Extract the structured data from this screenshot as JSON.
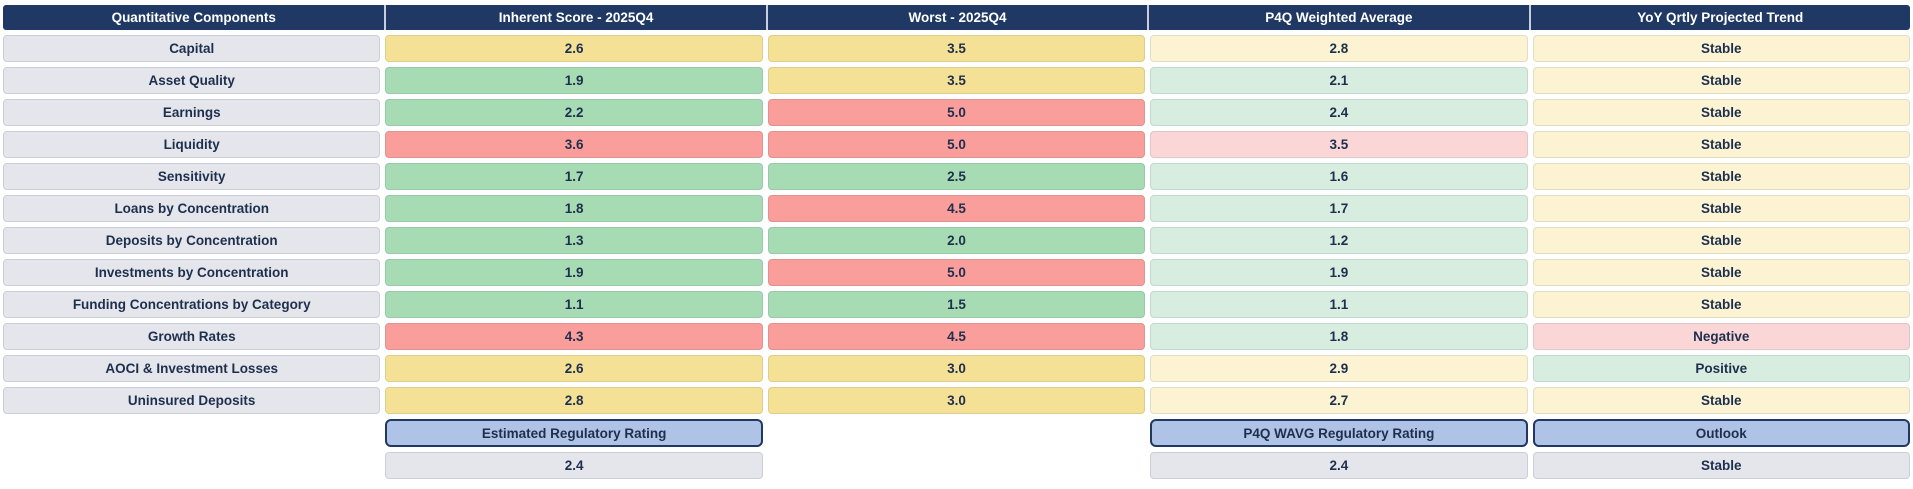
{
  "palette": {
    "header_bg": "#1F3864",
    "header_text": "#FFFFFF",
    "header_separator": "#C9CEDA",
    "label_bg": "#E4E6EC",
    "cell_text": "#1E2F4E",
    "green": "#A6DBB4",
    "yellow": "#F5E196",
    "red": "#F99E9A",
    "pale_green": "#D7EDDF",
    "pale_yellow": "#FBF3D2",
    "pale_red": "#FBD6D7",
    "button_bg": "#AFC3E6",
    "button_border": "#1F3864",
    "summary_bg": "#E4E6EC"
  },
  "table": {
    "columns": [
      {
        "label": "Quantitative Components"
      },
      {
        "label": "Inherent Score - 2025Q4"
      },
      {
        "label": "Worst - 2025Q4"
      },
      {
        "label": "P4Q Weighted Average"
      },
      {
        "label": "YoY Qrtly Projected Trend"
      }
    ],
    "rows": [
      {
        "label": "Capital",
        "inherent": {
          "value": "2.6",
          "color": "yellow"
        },
        "worst": {
          "value": "3.5",
          "color": "yellow"
        },
        "p4q": {
          "value": "2.8",
          "color": "pale_yellow"
        },
        "trend": {
          "value": "Stable",
          "color": "pale_yellow"
        }
      },
      {
        "label": "Asset Quality",
        "inherent": {
          "value": "1.9",
          "color": "green"
        },
        "worst": {
          "value": "3.5",
          "color": "yellow"
        },
        "p4q": {
          "value": "2.1",
          "color": "pale_green"
        },
        "trend": {
          "value": "Stable",
          "color": "pale_yellow"
        }
      },
      {
        "label": "Earnings",
        "inherent": {
          "value": "2.2",
          "color": "green"
        },
        "worst": {
          "value": "5.0",
          "color": "red"
        },
        "p4q": {
          "value": "2.4",
          "color": "pale_green"
        },
        "trend": {
          "value": "Stable",
          "color": "pale_yellow"
        }
      },
      {
        "label": "Liquidity",
        "inherent": {
          "value": "3.6",
          "color": "red"
        },
        "worst": {
          "value": "5.0",
          "color": "red"
        },
        "p4q": {
          "value": "3.5",
          "color": "pale_red"
        },
        "trend": {
          "value": "Stable",
          "color": "pale_yellow"
        }
      },
      {
        "label": "Sensitivity",
        "inherent": {
          "value": "1.7",
          "color": "green"
        },
        "worst": {
          "value": "2.5",
          "color": "green"
        },
        "p4q": {
          "value": "1.6",
          "color": "pale_green"
        },
        "trend": {
          "value": "Stable",
          "color": "pale_yellow"
        }
      },
      {
        "label": "Loans by Concentration",
        "inherent": {
          "value": "1.8",
          "color": "green"
        },
        "worst": {
          "value": "4.5",
          "color": "red"
        },
        "p4q": {
          "value": "1.7",
          "color": "pale_green"
        },
        "trend": {
          "value": "Stable",
          "color": "pale_yellow"
        }
      },
      {
        "label": "Deposits by Concentration",
        "inherent": {
          "value": "1.3",
          "color": "green"
        },
        "worst": {
          "value": "2.0",
          "color": "green"
        },
        "p4q": {
          "value": "1.2",
          "color": "pale_green"
        },
        "trend": {
          "value": "Stable",
          "color": "pale_yellow"
        }
      },
      {
        "label": "Investments by Concentration",
        "inherent": {
          "value": "1.9",
          "color": "green"
        },
        "worst": {
          "value": "5.0",
          "color": "red"
        },
        "p4q": {
          "value": "1.9",
          "color": "pale_green"
        },
        "trend": {
          "value": "Stable",
          "color": "pale_yellow"
        }
      },
      {
        "label": "Funding Concentrations by Category",
        "inherent": {
          "value": "1.1",
          "color": "green"
        },
        "worst": {
          "value": "1.5",
          "color": "green"
        },
        "p4q": {
          "value": "1.1",
          "color": "pale_green"
        },
        "trend": {
          "value": "Stable",
          "color": "pale_yellow"
        }
      },
      {
        "label": "Growth Rates",
        "inherent": {
          "value": "4.3",
          "color": "red"
        },
        "worst": {
          "value": "4.5",
          "color": "red"
        },
        "p4q": {
          "value": "1.8",
          "color": "pale_green"
        },
        "trend": {
          "value": "Negative",
          "color": "pale_red"
        }
      },
      {
        "label": "AOCI & Investment Losses",
        "inherent": {
          "value": "2.6",
          "color": "yellow"
        },
        "worst": {
          "value": "3.0",
          "color": "yellow"
        },
        "p4q": {
          "value": "2.9",
          "color": "pale_yellow"
        },
        "trend": {
          "value": "Positive",
          "color": "pale_green"
        }
      },
      {
        "label": "Uninsured Deposits",
        "inherent": {
          "value": "2.8",
          "color": "yellow"
        },
        "worst": {
          "value": "3.0",
          "color": "yellow"
        },
        "p4q": {
          "value": "2.7",
          "color": "pale_yellow"
        },
        "trend": {
          "value": "Stable",
          "color": "pale_yellow"
        }
      }
    ]
  },
  "footer": {
    "estimated_rating_label": "Estimated Regulatory Rating",
    "estimated_rating_value": "2.4",
    "wavg_rating_label": "P4Q WAVG Regulatory Rating",
    "wavg_rating_value": "2.4",
    "outlook_label": "Outlook",
    "outlook_value": "Stable"
  }
}
